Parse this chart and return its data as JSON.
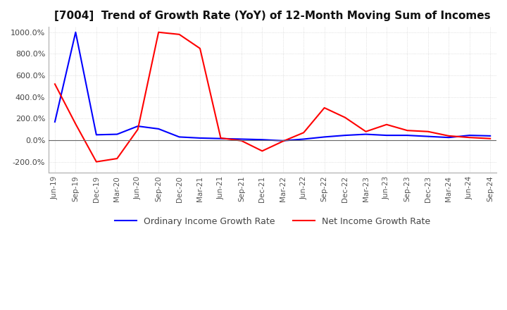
{
  "title": "[7004]  Trend of Growth Rate (YoY) of 12-Month Moving Sum of Incomes",
  "ylim": [
    -300,
    1050
  ],
  "yticks": [
    -200,
    0,
    200,
    400,
    600,
    800,
    1000
  ],
  "background_color": "#ffffff",
  "grid_color": "#cccccc",
  "legend_labels": [
    "Ordinary Income Growth Rate",
    "Net Income Growth Rate"
  ],
  "legend_colors": [
    "#0000ff",
    "#ff0000"
  ],
  "x_labels": [
    "Jun-19",
    "Sep-19",
    "Dec-19",
    "Mar-20",
    "Jun-20",
    "Sep-20",
    "Dec-20",
    "Mar-21",
    "Jun-21",
    "Sep-21",
    "Dec-21",
    "Mar-22",
    "Jun-22",
    "Sep-22",
    "Dec-22",
    "Mar-23",
    "Jun-23",
    "Sep-23",
    "Dec-23",
    "Mar-24",
    "Jun-24",
    "Sep-24"
  ],
  "ordinary_income": [
    170,
    1000,
    50,
    55,
    130,
    105,
    30,
    20,
    15,
    10,
    5,
    -5,
    10,
    30,
    45,
    55,
    45,
    45,
    35,
    25,
    45,
    40
  ],
  "net_income": [
    520,
    150,
    -200,
    -170,
    100,
    1000,
    980,
    850,
    20,
    -5,
    -100,
    -10,
    70,
    300,
    210,
    80,
    145,
    90,
    80,
    40,
    25,
    15
  ]
}
